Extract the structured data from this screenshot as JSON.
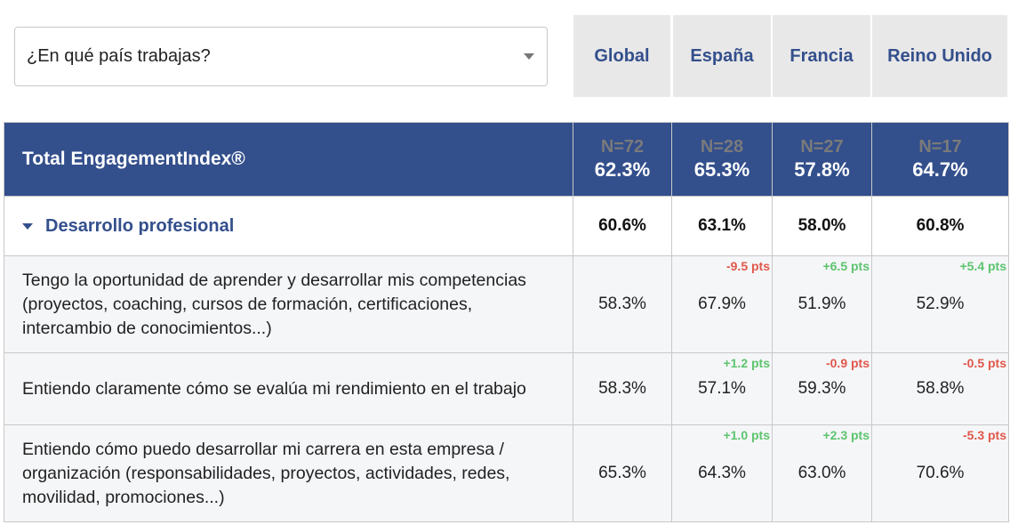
{
  "filter": {
    "label": "¿En qué país trabajas?"
  },
  "columns": [
    "Global",
    "España",
    "Francia",
    "Reino Unido"
  ],
  "total": {
    "label": "Total EngagementIndex®",
    "n": [
      "N=72",
      "N=28",
      "N=27",
      "N=17"
    ],
    "values": [
      "62.3%",
      "65.3%",
      "57.8%",
      "64.7%"
    ]
  },
  "category": {
    "label": "Desarrollo profesional",
    "values": [
      "60.6%",
      "63.1%",
      "58.0%",
      "60.8%"
    ]
  },
  "rows": [
    {
      "label": "Tengo la oportunidad de aprender y desarrollar mis competencias (proyectos, coaching, cursos de formación, certificaciones, intercambio de conocimientos...)",
      "values": [
        "58.3%",
        "67.9%",
        "51.9%",
        "52.9%"
      ],
      "deltas": [
        "",
        "-9.5 pts",
        "+6.5 pts",
        "+5.4 pts"
      ]
    },
    {
      "label": "Entiendo claramente cómo se evalúa mi rendimiento en el trabajo",
      "values": [
        "58.3%",
        "57.1%",
        "59.3%",
        "58.8%"
      ],
      "deltas": [
        "",
        "+1.2 pts",
        "-0.9 pts",
        "-0.5 pts"
      ]
    },
    {
      "label": "Entiendo cómo puedo desarrollar mi carrera en esta empresa / organización (responsabilidades, proyectos, actividades, redes, movilidad, promociones...)",
      "values": [
        "65.3%",
        "64.3%",
        "63.0%",
        "70.6%"
      ],
      "deltas": [
        "",
        "+1.0 pts",
        "+2.3 pts",
        "-5.3 pts"
      ]
    }
  ],
  "colors": {
    "header": "#334f8c",
    "positive": "#5dc46e",
    "negative": "#e0574a"
  }
}
